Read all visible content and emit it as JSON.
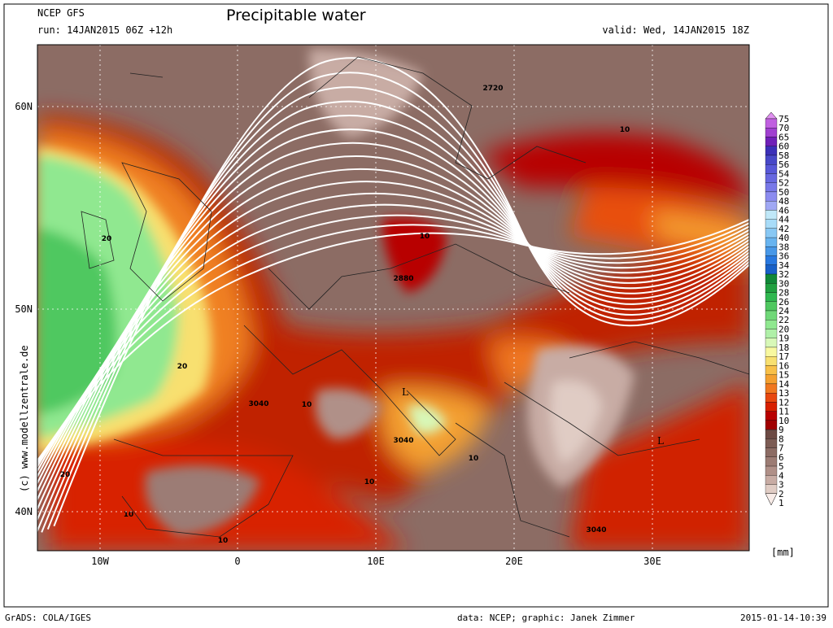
{
  "header": {
    "model": "NCEP GFS",
    "title": "Precipitable water",
    "run": "run: 14JAN2015 06Z +12h",
    "valid": "valid: Wed, 14JAN2015 18Z"
  },
  "map": {
    "lat_labels": [
      "60N",
      "50N",
      "40N"
    ],
    "lon_labels": [
      "10W",
      "0",
      "10E",
      "20E",
      "30E"
    ],
    "contour_labels": [
      "2720",
      "10",
      "20",
      "10",
      "2880",
      "20",
      "3040",
      "10",
      "L",
      "3040",
      "10",
      "L",
      "10",
      "20",
      "10",
      "10",
      "3040"
    ],
    "watermark": "(c)  www.modellzentrale.de"
  },
  "legend": {
    "unit": "[mm]",
    "levels": [
      {
        "label": "75",
        "color": "#e090f0"
      },
      {
        "label": "70",
        "color": "#c060e0"
      },
      {
        "label": "65",
        "color": "#a040d0"
      },
      {
        "label": "60",
        "color": "#7020b8"
      },
      {
        "label": "58",
        "color": "#3c30b8"
      },
      {
        "label": "56",
        "color": "#4848c8"
      },
      {
        "label": "54",
        "color": "#5858d8"
      },
      {
        "label": "52",
        "color": "#6868e0"
      },
      {
        "label": "50",
        "color": "#7878e8"
      },
      {
        "label": "48",
        "color": "#8c8cf0"
      },
      {
        "label": "46",
        "color": "#a0a8f4"
      },
      {
        "label": "44",
        "color": "#c0e8f8"
      },
      {
        "label": "42",
        "color": "#a8dcf8"
      },
      {
        "label": "40",
        "color": "#88c8f4"
      },
      {
        "label": "38",
        "color": "#68b4f0"
      },
      {
        "label": "36",
        "color": "#4898e8"
      },
      {
        "label": "34",
        "color": "#2878e0"
      },
      {
        "label": "32",
        "color": "#1860c8"
      },
      {
        "label": "30",
        "color": "#108838"
      },
      {
        "label": "28",
        "color": "#20a040"
      },
      {
        "label": "26",
        "color": "#30b850"
      },
      {
        "label": "24",
        "color": "#50c860"
      },
      {
        "label": "22",
        "color": "#70d878"
      },
      {
        "label": "20",
        "color": "#90e890"
      },
      {
        "label": "19",
        "color": "#b0f0a8"
      },
      {
        "label": "18",
        "color": "#d8f8b8"
      },
      {
        "label": "17",
        "color": "#f8f8a0"
      },
      {
        "label": "16",
        "color": "#f8e070"
      },
      {
        "label": "15",
        "color": "#f8c048"
      },
      {
        "label": "14",
        "color": "#f4a030"
      },
      {
        "label": "13",
        "color": "#f07820"
      },
      {
        "label": "12",
        "color": "#e84810"
      },
      {
        "label": "11",
        "color": "#d82000"
      },
      {
        "label": "10",
        "color": "#b80000"
      },
      {
        "label": "9",
        "color": "#a00000"
      },
      {
        "label": "8",
        "color": "#6c4a44"
      },
      {
        "label": "7",
        "color": "#7c5c54"
      },
      {
        "label": "6",
        "color": "#8c6c64"
      },
      {
        "label": "5",
        "color": "#9c7c74"
      },
      {
        "label": "4",
        "color": "#b09088"
      },
      {
        "label": "3",
        "color": "#c8aca4"
      },
      {
        "label": "2",
        "color": "#e0ccc4"
      },
      {
        "label": "1",
        "color": "#f8ece8"
      }
    ]
  },
  "footer": {
    "left": "GrADS: COLA/IGES",
    "center": "data: NCEP; graphic: Janek Zimmer",
    "right": "2015-01-14-10:39"
  }
}
